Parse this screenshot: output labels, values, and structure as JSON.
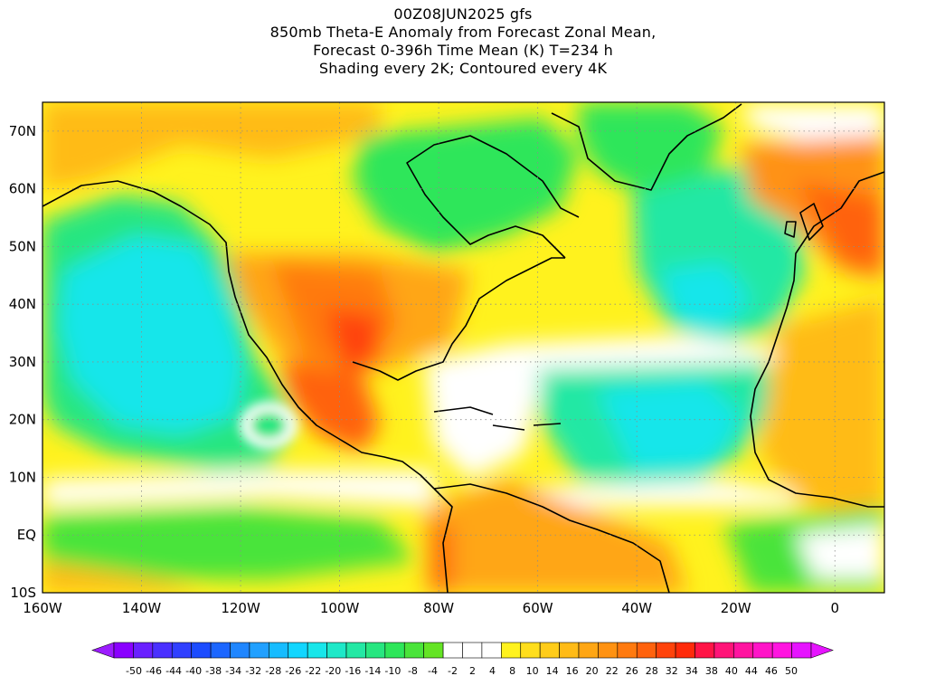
{
  "figure": {
    "title_lines": [
      "00Z08JUN2025 gfs",
      "850mb Theta-E Anomaly from Forecast Zonal Mean,",
      "Forecast 0-396h Time Mean (K) T=234 h",
      "Shading every 2K; Contoured every 4K"
    ]
  },
  "map": {
    "region": "North Atlantic, North & Central America, northern South America, western Europe and Africa",
    "lon_range": [
      -160,
      10
    ],
    "lat_range": [
      -10,
      75
    ],
    "lon_tick_labels": [
      "160W",
      "140W",
      "120W",
      "100W",
      "80W",
      "60W",
      "40W",
      "20W",
      "0"
    ],
    "lon_tick_values": [
      -160,
      -140,
      -120,
      -100,
      -80,
      -60,
      -40,
      -20,
      0
    ],
    "lat_tick_labels": [
      "10S",
      "EQ",
      "10N",
      "20N",
      "30N",
      "40N",
      "50N",
      "60N",
      "70N"
    ],
    "lat_tick_values": [
      -10,
      0,
      10,
      20,
      30,
      40,
      50,
      60,
      70
    ],
    "grid": "dotted"
  },
  "colorbar": {
    "labels": [
      "-50",
      "-46",
      "-44",
      "-40",
      "-38",
      "-34",
      "-32",
      "-28",
      "-26",
      "-22",
      "-20",
      "-16",
      "-14",
      "-10",
      "-8",
      "-4",
      "-2",
      "2",
      "4",
      "8",
      "10",
      "14",
      "16",
      "20",
      "22",
      "26",
      "28",
      "32",
      "34",
      "38",
      "40",
      "44",
      "46",
      "50"
    ],
    "colors": [
      "#8a00ff",
      "#6a20ff",
      "#4a30ff",
      "#3040ff",
      "#1c4cff",
      "#1c66ff",
      "#1f86ff",
      "#21a0ff",
      "#17bcff",
      "#12d6ff",
      "#18e6ea",
      "#1ee8c8",
      "#23e8a4",
      "#27e680",
      "#2ee65a",
      "#4ae43a",
      "#64e424",
      "#ffffff",
      "#ffffff",
      "#ffffff",
      "#fff21e",
      "#ffde1c",
      "#ffcc19",
      "#ffbb17",
      "#ffa614",
      "#ff9212",
      "#ff7a0f",
      "#ff620d",
      "#ff430b",
      "#ff2a0a",
      "#ff1446",
      "#ff1478",
      "#ff14a0",
      "#ff14c8",
      "#ff14e0",
      "#e614ff"
    ],
    "under_color": "#9c1cff",
    "over_color": "#e614ff"
  }
}
